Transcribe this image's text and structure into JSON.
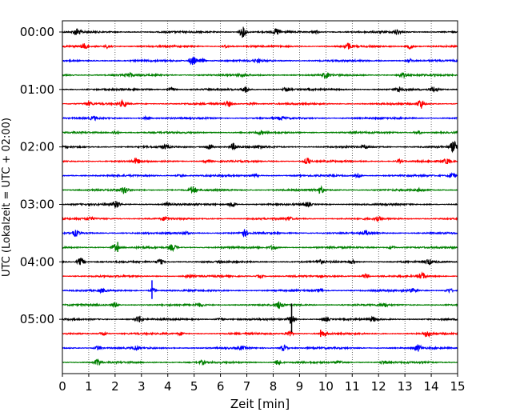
{
  "chart_data": {
    "type": "line",
    "subtype": "helicorder",
    "xlabel": "Zeit  [min]",
    "ylabel": "UTC (Lokalzeit = UTC + 02:00)",
    "xlim": [
      0,
      15
    ],
    "x_ticks": [
      0,
      1,
      2,
      3,
      4,
      5,
      6,
      7,
      8,
      9,
      10,
      11,
      12,
      13,
      14,
      15
    ],
    "x_tick_labels": [
      "0",
      "1",
      "2",
      "3",
      "4",
      "5",
      "6",
      "7",
      "8",
      "9",
      "10",
      "11",
      "12",
      "13",
      "14",
      "15"
    ],
    "row_minutes": 15,
    "y_tick_labels": [
      {
        "row": 0,
        "label": "00:00"
      },
      {
        "row": 4,
        "label": "01:00"
      },
      {
        "row": 8,
        "label": "02:00"
      },
      {
        "row": 12,
        "label": "03:00"
      },
      {
        "row": 16,
        "label": "04:00"
      },
      {
        "row": 20,
        "label": "05:00"
      }
    ],
    "vertical_grid": "dotted",
    "color_cycle": [
      "#000000",
      "#ff0000",
      "#0000ff",
      "#008000"
    ],
    "traces": [
      {
        "row": 0,
        "color": "#000000",
        "events": [
          [
            0.55,
            0.7
          ],
          [
            6.85,
            1.0
          ],
          [
            8.15,
            0.6
          ],
          [
            12.7,
            0.5
          ],
          [
            9.6,
            0.3
          ]
        ]
      },
      {
        "row": 1,
        "color": "#ff0000",
        "events": [
          [
            0.85,
            0.5
          ],
          [
            1.75,
            0.4
          ],
          [
            10.85,
            0.6
          ],
          [
            13.2,
            0.5
          ],
          [
            6.2,
            0.3
          ]
        ]
      },
      {
        "row": 2,
        "color": "#0000ff",
        "events": [
          [
            4.95,
            0.9
          ],
          [
            5.3,
            0.4
          ],
          [
            7.4,
            0.3
          ],
          [
            13.2,
            0.35
          ]
        ]
      },
      {
        "row": 3,
        "color": "#008000",
        "events": [
          [
            2.55,
            0.4
          ],
          [
            10.0,
            0.5
          ],
          [
            12.9,
            0.45
          ],
          [
            6.8,
            0.3
          ]
        ]
      },
      {
        "row": 4,
        "color": "#000000",
        "events": [
          [
            4.15,
            0.3
          ],
          [
            6.95,
            0.6
          ],
          [
            12.8,
            0.5
          ],
          [
            14.1,
            0.5
          ],
          [
            8.5,
            0.4
          ]
        ]
      },
      {
        "row": 5,
        "color": "#ff0000",
        "events": [
          [
            1.0,
            0.35
          ],
          [
            2.3,
            0.6
          ],
          [
            6.3,
            0.5
          ],
          [
            13.6,
            0.9
          ],
          [
            7.2,
            0.3
          ]
        ]
      },
      {
        "row": 6,
        "color": "#0000ff",
        "events": [
          [
            1.2,
            0.3
          ],
          [
            3.2,
            0.3
          ],
          [
            8.3,
            0.3
          ]
        ]
      },
      {
        "row": 7,
        "color": "#008000",
        "events": [
          [
            2.0,
            0.3
          ],
          [
            7.5,
            0.3
          ],
          [
            13.5,
            0.35
          ]
        ]
      },
      {
        "row": 8,
        "color": "#000000",
        "events": [
          [
            5.6,
            0.6
          ],
          [
            6.5,
            0.6
          ],
          [
            14.85,
            1.0
          ],
          [
            3.9,
            0.4
          ],
          [
            7.5,
            0.3
          ],
          [
            11.5,
            0.3
          ]
        ]
      },
      {
        "row": 9,
        "color": "#ff0000",
        "events": [
          [
            2.8,
            0.5
          ],
          [
            9.3,
            0.6
          ],
          [
            12.8,
            0.3
          ],
          [
            14.6,
            0.45
          ],
          [
            5.5,
            0.3
          ]
        ]
      },
      {
        "row": 10,
        "color": "#0000ff",
        "events": [
          [
            7.3,
            0.3
          ],
          [
            11.2,
            0.3
          ],
          [
            14.8,
            0.5
          ],
          [
            4.5,
            0.25
          ]
        ]
      },
      {
        "row": 11,
        "color": "#008000",
        "events": [
          [
            2.35,
            0.7
          ],
          [
            4.95,
            0.7
          ],
          [
            9.8,
            0.6
          ],
          [
            13.6,
            0.3
          ]
        ]
      },
      {
        "row": 12,
        "color": "#000000",
        "events": [
          [
            2.05,
            0.7
          ],
          [
            6.45,
            0.5
          ],
          [
            9.3,
            0.4
          ],
          [
            4.0,
            0.3
          ]
        ]
      },
      {
        "row": 13,
        "color": "#ff0000",
        "events": [
          [
            1.05,
            0.3
          ],
          [
            3.9,
            0.35
          ],
          [
            8.6,
            0.3
          ],
          [
            12.0,
            0.3
          ]
        ]
      },
      {
        "row": 14,
        "color": "#0000ff",
        "events": [
          [
            0.5,
            0.55
          ],
          [
            6.9,
            0.65
          ],
          [
            11.5,
            0.4
          ],
          [
            4.7,
            0.3
          ]
        ]
      },
      {
        "row": 15,
        "color": "#008000",
        "events": [
          [
            2.0,
            0.6
          ],
          [
            4.2,
            0.6
          ],
          [
            8.0,
            0.4
          ],
          [
            12.5,
            0.3
          ]
        ]
      },
      {
        "row": 16,
        "color": "#000000",
        "events": [
          [
            0.7,
            0.8
          ],
          [
            3.7,
            0.5
          ],
          [
            13.9,
            0.5
          ],
          [
            9.8,
            0.3
          ],
          [
            11.0,
            0.3
          ]
        ]
      },
      {
        "row": 17,
        "color": "#ff0000",
        "events": [
          [
            4.8,
            0.3
          ],
          [
            11.5,
            0.4
          ],
          [
            13.65,
            0.6
          ],
          [
            7.5,
            0.3
          ]
        ]
      },
      {
        "row": 18,
        "color": "#0000ff",
        "events": [
          [
            3.45,
            0.4
          ],
          [
            9.8,
            0.4
          ],
          [
            13.3,
            0.5
          ],
          [
            14.7,
            0.4
          ],
          [
            1.5,
            0.3
          ]
        ]
      },
      {
        "row": 19,
        "color": "#008000",
        "events": [
          [
            2.0,
            0.45
          ],
          [
            8.25,
            0.7
          ],
          [
            12.2,
            0.3
          ],
          [
            5.2,
            0.3
          ]
        ]
      },
      {
        "row": 20,
        "color": "#000000",
        "events": [
          [
            2.9,
            0.7
          ],
          [
            8.7,
            0.9
          ],
          [
            10.0,
            0.4
          ],
          [
            11.8,
            0.4
          ],
          [
            6.0,
            0.3
          ]
        ]
      },
      {
        "row": 21,
        "color": "#ff0000",
        "events": [
          [
            1.55,
            0.4
          ],
          [
            8.6,
            0.6
          ],
          [
            9.9,
            0.4
          ],
          [
            13.85,
            0.5
          ],
          [
            4.5,
            0.3
          ]
        ]
      },
      {
        "row": 22,
        "color": "#0000ff",
        "events": [
          [
            1.35,
            0.4
          ],
          [
            2.8,
            0.4
          ],
          [
            8.4,
            0.6
          ],
          [
            13.5,
            0.6
          ],
          [
            6.8,
            0.3
          ]
        ]
      },
      {
        "row": 23,
        "color": "#008000",
        "events": [
          [
            1.35,
            0.6
          ],
          [
            8.2,
            0.6
          ],
          [
            5.3,
            0.3
          ],
          [
            10.5,
            0.3
          ],
          [
            12.2,
            0.3
          ]
        ]
      }
    ],
    "spikes": [
      {
        "row": 15,
        "x": 2.1,
        "amplitude": 0.7
      },
      {
        "row": 18,
        "x": 3.4,
        "amplitude": 1.3
      },
      {
        "row": 20,
        "x": 8.7,
        "amplitude": 2.0
      },
      {
        "row": 21,
        "x": 9.8,
        "amplitude": 0.5
      }
    ]
  }
}
